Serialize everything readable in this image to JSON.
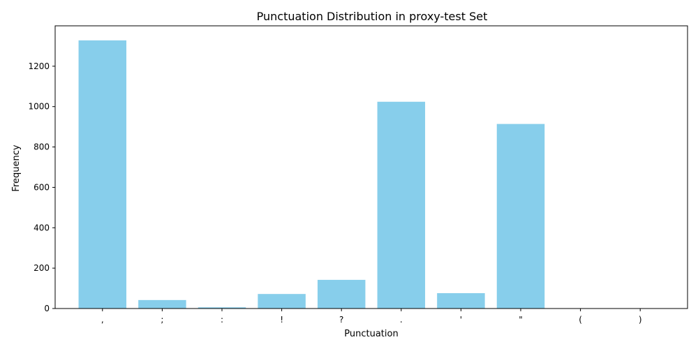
{
  "chart_data": {
    "type": "bar",
    "title": "Punctuation Distribution in proxy-test Set",
    "xlabel": "Punctuation",
    "ylabel": "Frequency",
    "categories": [
      ",",
      ";",
      ":",
      "!",
      "?",
      ".",
      "'",
      "\"",
      "(",
      ")"
    ],
    "values": [
      1328,
      42,
      6,
      72,
      142,
      1024,
      76,
      914,
      0,
      0
    ],
    "ylim": [
      0,
      1400
    ],
    "yticks": [
      0,
      200,
      400,
      600,
      800,
      1000,
      1200
    ],
    "grid": false,
    "bar_color": "#87CEEB"
  }
}
